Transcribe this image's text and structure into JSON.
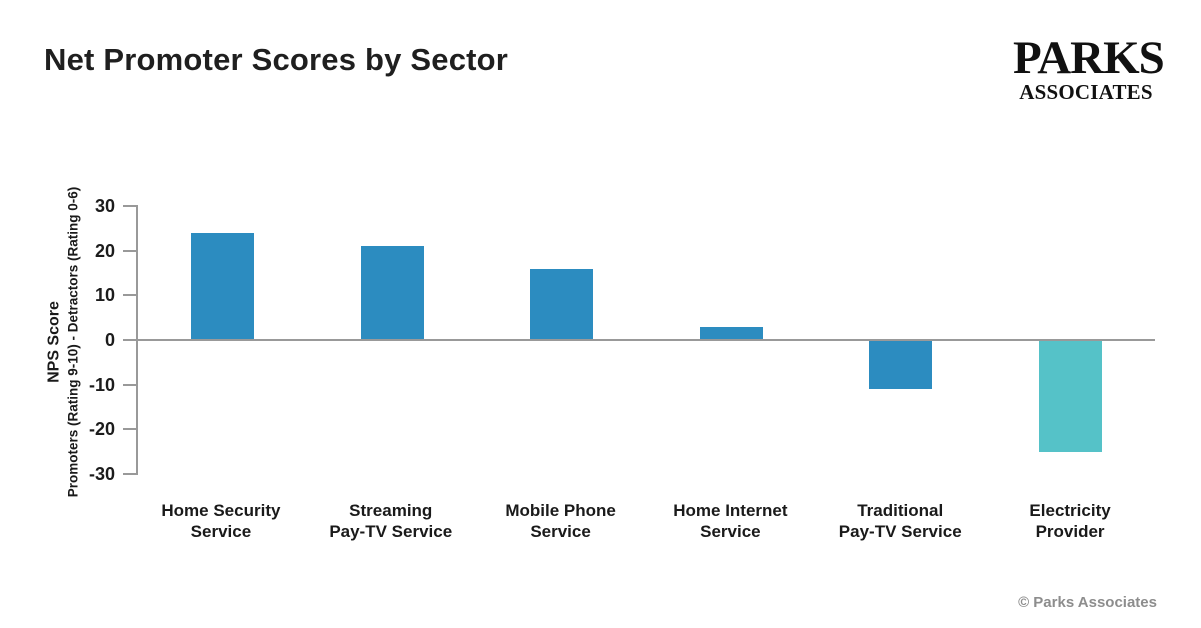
{
  "page": {
    "title": "Net Promoter Scores by Sector",
    "footer": "© Parks Associates"
  },
  "logo": {
    "line1": "PARKS",
    "line2": "ASSOCIATES"
  },
  "chart_data": {
    "type": "bar",
    "title": "Net Promoter Scores by Sector",
    "categories": [
      "Home Security Service",
      "Streaming Pay-TV Service",
      "Mobile Phone Service",
      "Home Internet Service",
      "Traditional Pay-TV Service",
      "Electricity Provider"
    ],
    "category_lines": [
      [
        "Home Security",
        "Service"
      ],
      [
        "Streaming",
        "Pay-TV Service"
      ],
      [
        "Mobile Phone",
        "Service"
      ],
      [
        "Home Internet",
        "Service"
      ],
      [
        "Traditional",
        "Pay-TV Service"
      ],
      [
        "Electricity",
        "Provider"
      ]
    ],
    "values": [
      24,
      21,
      16,
      3,
      -11,
      -25
    ],
    "xlabel": "",
    "ylabel_line1": "NPS Score",
    "ylabel_line2": "Promoters (Rating 9-10) - Detractors (Rating 0-6)",
    "ylim": [
      -30,
      30
    ],
    "yticks": [
      30,
      20,
      10,
      0,
      -10,
      -20,
      -30
    ],
    "ytick_labels": [
      "30",
      "20",
      "10",
      "0",
      "-10",
      "-20",
      "-30"
    ],
    "grid": false,
    "legend": "none",
    "bar_colors": [
      "#2C8CC0",
      "#2C8CC0",
      "#2C8CC0",
      "#2C8CC0",
      "#2C8CC0",
      "#55C2C8"
    ],
    "axis_color": "#999999"
  }
}
